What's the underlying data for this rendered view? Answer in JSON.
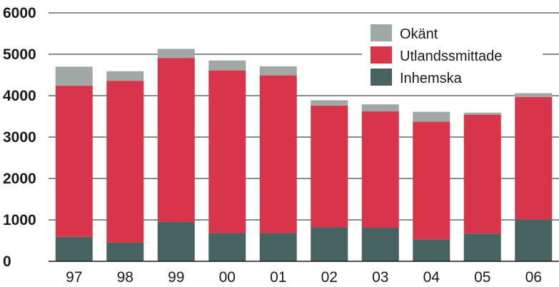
{
  "chart_data": {
    "type": "bar",
    "stacked": true,
    "categories": [
      "97",
      "98",
      "99",
      "00",
      "01",
      "02",
      "03",
      "04",
      "05",
      "06"
    ],
    "series": [
      {
        "name": "Inhemska",
        "color": "#476361",
        "values": [
          590,
          450,
          950,
          680,
          680,
          820,
          810,
          530,
          670,
          1010
        ]
      },
      {
        "name": "Utlandssmittade",
        "color": "#d8344a",
        "values": [
          3650,
          3910,
          3960,
          3930,
          3810,
          2940,
          2810,
          2840,
          2870,
          2960
        ]
      },
      {
        "name": "Okänt",
        "color": "#a0a8a6",
        "values": [
          460,
          230,
          220,
          240,
          220,
          130,
          170,
          240,
          50,
          90
        ]
      }
    ],
    "ylim": [
      0,
      6000
    ],
    "yticks": [
      0,
      1000,
      2000,
      3000,
      4000,
      5000,
      6000
    ],
    "grid": true,
    "legend": {
      "position": "top-right",
      "entries": [
        "Okänt",
        "Utlandssmittade",
        "Inhemska"
      ]
    },
    "title": "",
    "xlabel": "",
    "ylabel": ""
  }
}
